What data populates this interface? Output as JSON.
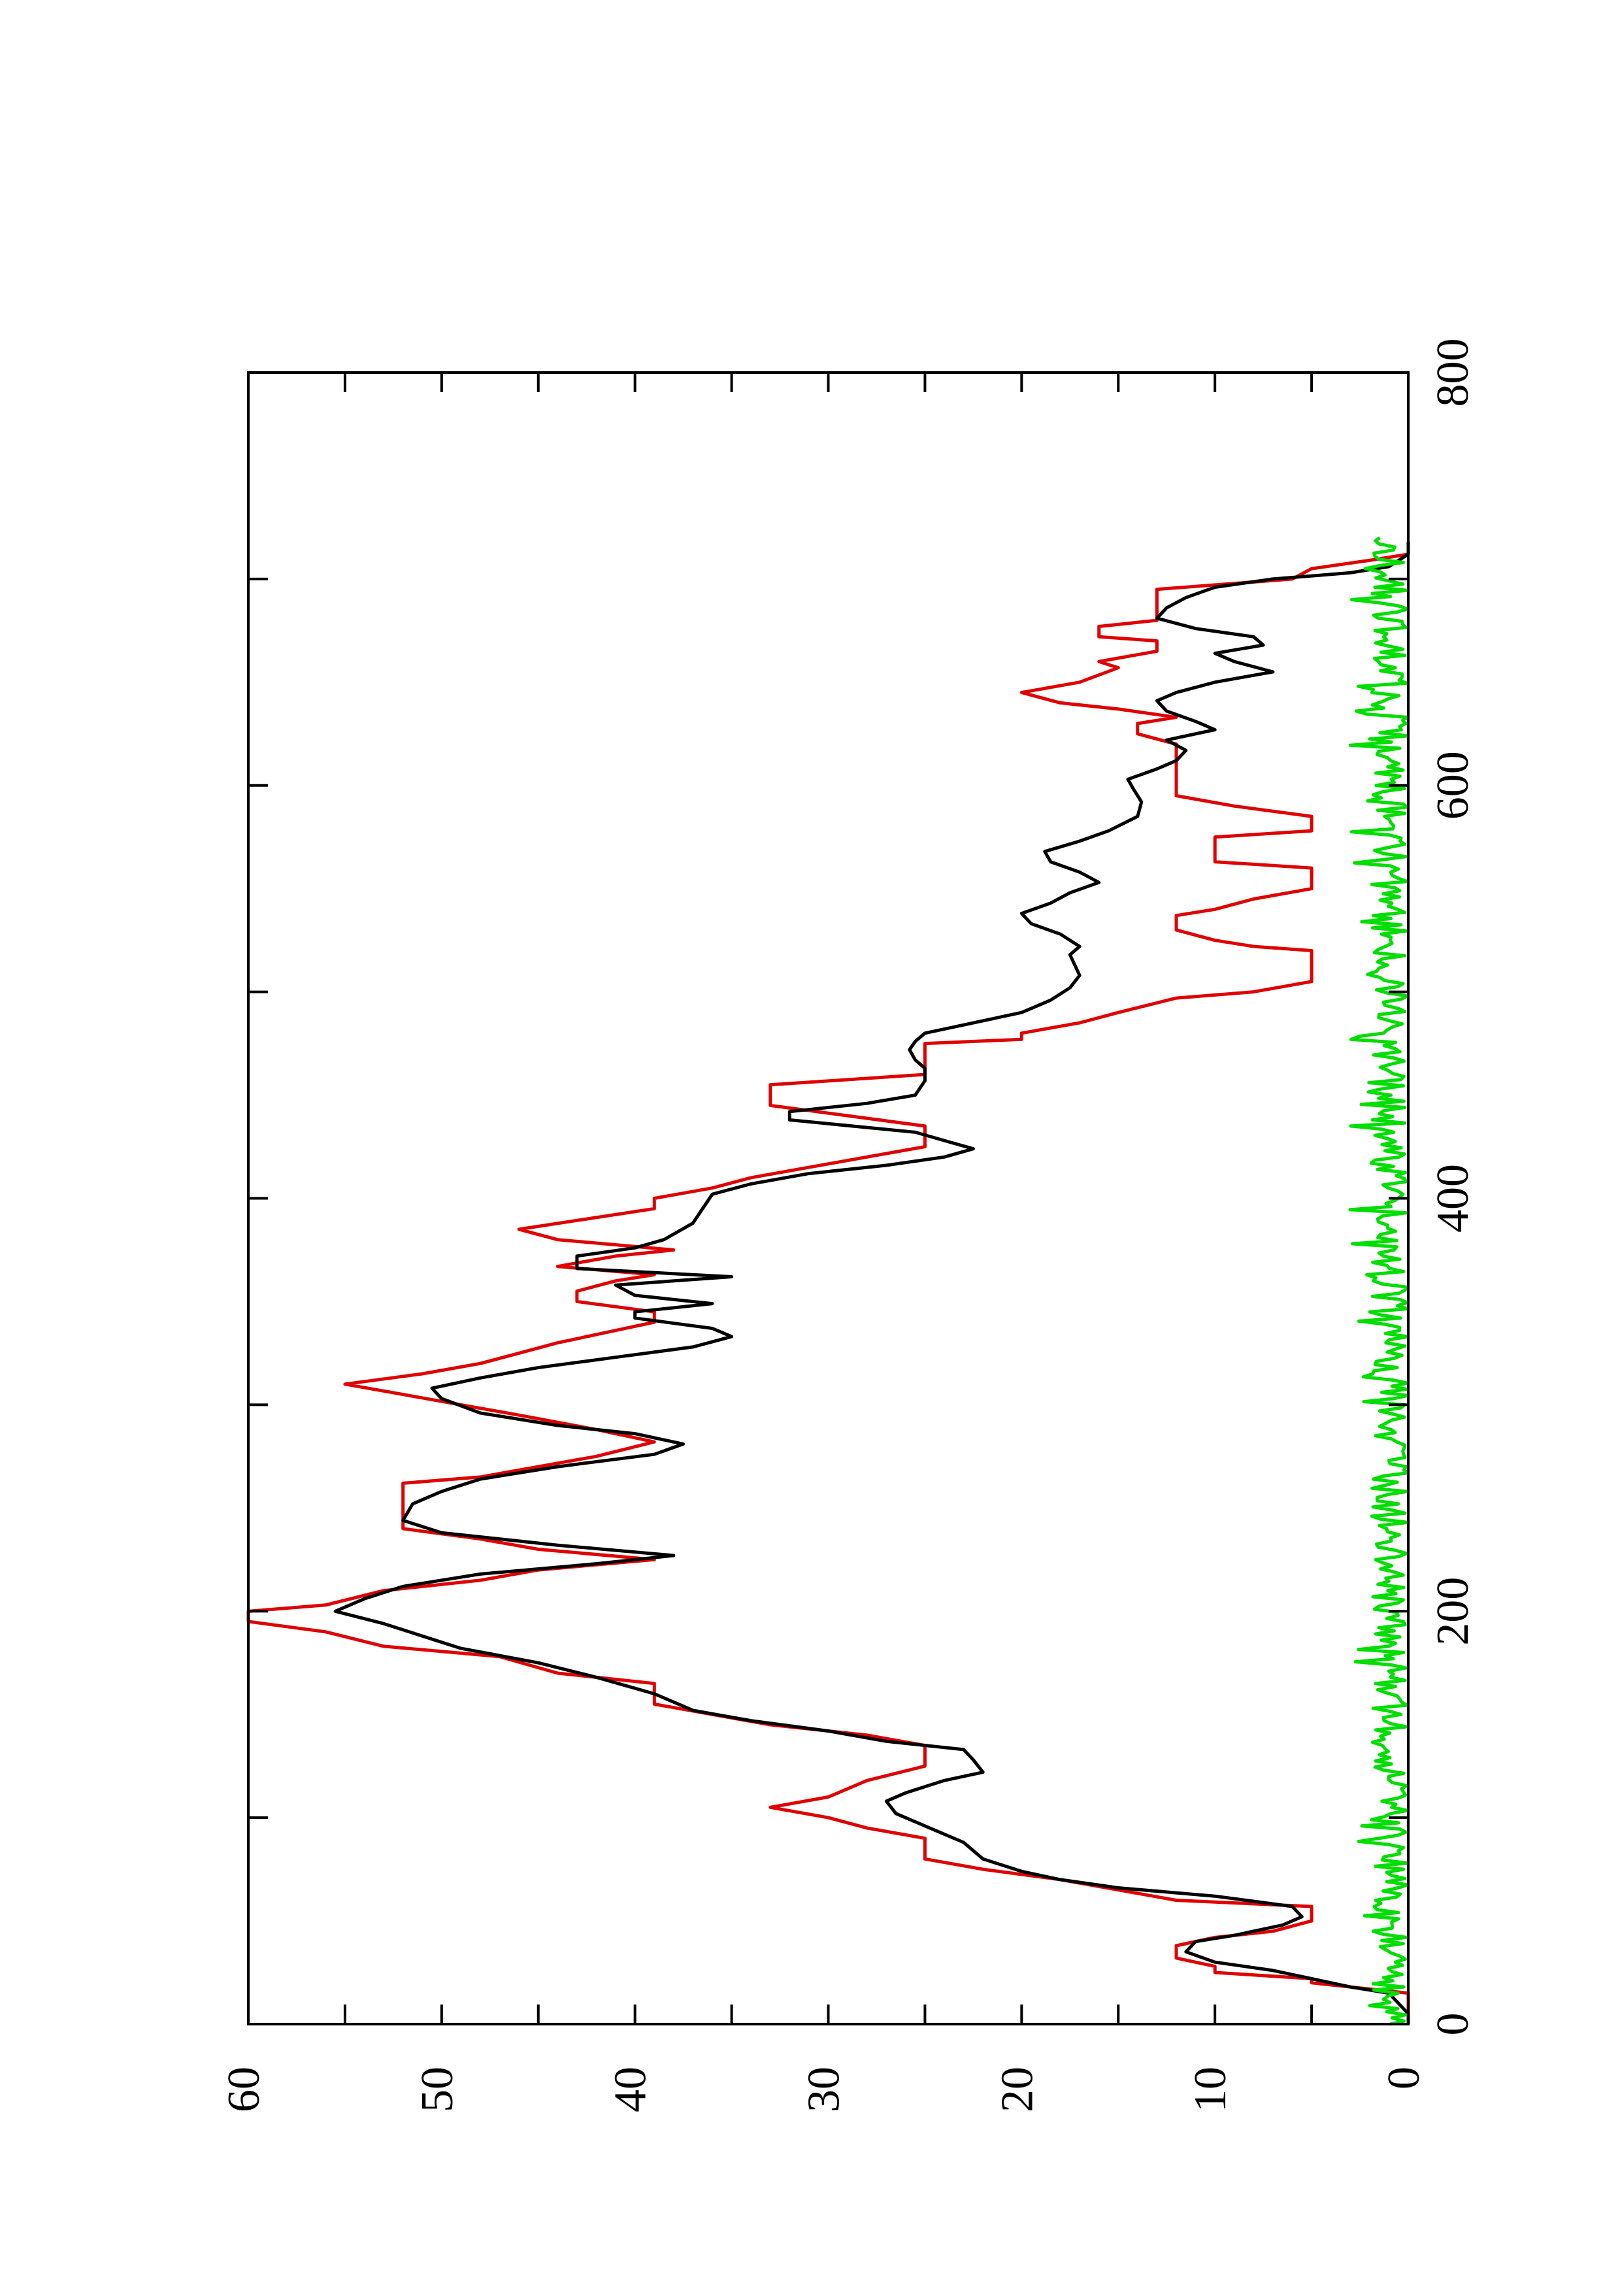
{
  "chart_data": {
    "type": "line",
    "orientation": "rotated-90-ccw",
    "title": "",
    "xlabel": "",
    "ylabel": "",
    "xlim": [
      0,
      800
    ],
    "ylim": [
      0,
      60
    ],
    "x_ticks": [
      0,
      200,
      400,
      600,
      800
    ],
    "y_ticks": [
      0,
      10,
      20,
      30,
      40,
      50,
      60
    ],
    "x_minor_step": 100,
    "y_minor_step": 5,
    "grid": false,
    "legend": "none",
    "series": [
      {
        "color": "#e00000",
        "style": "step",
        "points": [
          [
            0,
            0
          ],
          [
            15,
            0
          ],
          [
            20,
            5
          ],
          [
            22,
            5
          ],
          [
            25,
            10
          ],
          [
            28,
            10
          ],
          [
            32,
            12
          ],
          [
            38,
            12
          ],
          [
            42,
            10
          ],
          [
            45,
            7
          ],
          [
            50,
            5
          ],
          [
            57,
            5
          ],
          [
            60,
            12
          ],
          [
            65,
            15
          ],
          [
            70,
            18
          ],
          [
            75,
            22
          ],
          [
            80,
            25
          ],
          [
            90,
            25
          ],
          [
            95,
            28
          ],
          [
            100,
            30
          ],
          [
            105,
            33
          ],
          [
            110,
            30
          ],
          [
            118,
            28
          ],
          [
            125,
            25
          ],
          [
            135,
            25
          ],
          [
            140,
            28
          ],
          [
            145,
            33
          ],
          [
            150,
            36
          ],
          [
            155,
            39
          ],
          [
            165,
            39
          ],
          [
            170,
            44
          ],
          [
            178,
            47
          ],
          [
            183,
            53
          ],
          [
            190,
            56
          ],
          [
            195,
            60
          ],
          [
            200,
            60
          ],
          [
            203,
            56
          ],
          [
            210,
            53
          ],
          [
            215,
            48
          ],
          [
            220,
            45
          ],
          [
            225,
            39
          ],
          [
            230,
            45
          ],
          [
            235,
            48
          ],
          [
            240,
            52
          ],
          [
            262,
            52
          ],
          [
            265,
            48
          ],
          [
            270,
            45
          ],
          [
            275,
            42
          ],
          [
            282,
            39
          ],
          [
            288,
            42
          ],
          [
            295,
            46
          ],
          [
            300,
            49
          ],
          [
            305,
            52
          ],
          [
            310,
            55
          ],
          [
            315,
            51
          ],
          [
            320,
            48
          ],
          [
            325,
            46
          ],
          [
            330,
            44
          ],
          [
            340,
            39
          ],
          [
            345,
            39
          ],
          [
            350,
            43
          ],
          [
            355,
            43
          ],
          [
            360,
            41
          ],
          [
            363,
            39
          ],
          [
            367,
            44
          ],
          [
            372,
            41
          ],
          [
            375,
            38
          ],
          [
            380,
            44
          ],
          [
            385,
            46
          ],
          [
            395,
            39
          ],
          [
            400,
            39
          ],
          [
            405,
            36
          ],
          [
            410,
            34
          ],
          [
            415,
            31
          ],
          [
            425,
            25
          ],
          [
            435,
            25
          ],
          [
            440,
            29
          ],
          [
            445,
            33
          ],
          [
            455,
            33
          ],
          [
            460,
            25
          ],
          [
            465,
            25
          ],
          [
            470,
            25
          ],
          [
            475,
            25
          ],
          [
            477,
            20
          ],
          [
            480,
            20
          ],
          [
            485,
            17
          ],
          [
            490,
            15
          ],
          [
            497,
            12
          ],
          [
            500,
            8
          ],
          [
            505,
            5
          ],
          [
            520,
            5
          ],
          [
            522,
            8
          ],
          [
            525,
            10
          ],
          [
            530,
            12
          ],
          [
            537,
            12
          ],
          [
            540,
            10
          ],
          [
            545,
            8
          ],
          [
            550,
            5
          ],
          [
            560,
            5
          ],
          [
            563,
            10
          ],
          [
            575,
            10
          ],
          [
            578,
            5
          ],
          [
            585,
            5
          ],
          [
            590,
            9
          ],
          [
            595,
            12
          ],
          [
            620,
            12
          ],
          [
            625,
            14
          ],
          [
            630,
            14
          ],
          [
            633,
            12
          ],
          [
            637,
            15
          ],
          [
            640,
            18
          ],
          [
            645,
            20
          ],
          [
            650,
            17
          ],
          [
            657,
            15
          ],
          [
            660,
            16
          ],
          [
            665,
            13
          ],
          [
            670,
            13
          ],
          [
            672,
            16
          ],
          [
            677,
            16
          ],
          [
            680,
            13
          ],
          [
            695,
            13
          ],
          [
            700,
            6
          ],
          [
            705,
            5
          ],
          [
            709,
            2
          ],
          [
            712,
            0
          ]
        ]
      },
      {
        "color": "#000000",
        "style": "line",
        "points": [
          [
            0,
            0
          ],
          [
            5,
            0
          ],
          [
            10,
            0.5
          ],
          [
            15,
            1
          ],
          [
            18,
            3
          ],
          [
            22,
            5
          ],
          [
            26,
            7
          ],
          [
            30,
            10
          ],
          [
            35,
            11.5
          ],
          [
            40,
            11
          ],
          [
            43,
            9
          ],
          [
            48,
            6.5
          ],
          [
            52,
            5.5
          ],
          [
            57,
            6
          ],
          [
            62,
            10
          ],
          [
            66,
            15
          ],
          [
            70,
            18
          ],
          [
            74,
            20
          ],
          [
            80,
            22
          ],
          [
            88,
            23
          ],
          [
            96,
            25
          ],
          [
            102,
            26.5
          ],
          [
            108,
            27
          ],
          [
            112,
            26
          ],
          [
            118,
            24
          ],
          [
            122,
            22
          ],
          [
            128,
            22.5
          ],
          [
            133,
            23
          ],
          [
            137,
            27
          ],
          [
            142,
            30
          ],
          [
            147,
            34
          ],
          [
            152,
            37
          ],
          [
            160,
            39
          ],
          [
            168,
            42
          ],
          [
            175,
            45
          ],
          [
            182,
            49
          ],
          [
            188,
            51
          ],
          [
            194,
            53
          ],
          [
            200,
            55.5
          ],
          [
            206,
            54
          ],
          [
            212,
            52
          ],
          [
            218,
            48
          ],
          [
            223,
            42
          ],
          [
            227,
            38
          ],
          [
            232,
            44
          ],
          [
            238,
            50
          ],
          [
            244,
            52
          ],
          [
            252,
            51.5
          ],
          [
            258,
            50
          ],
          [
            264,
            48
          ],
          [
            270,
            44
          ],
          [
            276,
            39
          ],
          [
            281,
            37.5
          ],
          [
            286,
            40
          ],
          [
            290,
            44
          ],
          [
            296,
            48
          ],
          [
            303,
            50
          ],
          [
            308,
            50.5
          ],
          [
            313,
            48
          ],
          [
            318,
            45
          ],
          [
            323,
            41
          ],
          [
            328,
            37
          ],
          [
            333,
            35
          ],
          [
            337,
            36
          ],
          [
            342,
            40
          ],
          [
            345,
            40
          ],
          [
            349,
            36
          ],
          [
            353,
            40
          ],
          [
            358,
            41
          ],
          [
            362,
            35
          ],
          [
            366,
            43
          ],
          [
            372,
            43
          ],
          [
            376,
            40
          ],
          [
            380,
            38.5
          ],
          [
            388,
            37
          ],
          [
            395,
            36.5
          ],
          [
            402,
            36
          ],
          [
            407,
            34
          ],
          [
            412,
            31
          ],
          [
            416,
            27
          ],
          [
            420,
            24
          ],
          [
            424,
            22.5
          ],
          [
            428,
            24
          ],
          [
            432,
            25.5
          ],
          [
            438,
            32
          ],
          [
            442,
            32
          ],
          [
            446,
            28
          ],
          [
            450,
            25.5
          ],
          [
            457,
            25
          ],
          [
            463,
            25
          ],
          [
            467,
            25.5
          ],
          [
            472,
            25.8
          ],
          [
            476,
            25.5
          ],
          [
            480,
            25
          ],
          [
            484,
            23
          ],
          [
            490,
            20
          ],
          [
            496,
            18.5
          ],
          [
            502,
            17.5
          ],
          [
            508,
            17
          ],
          [
            512,
            17.2
          ],
          [
            518,
            17.5
          ],
          [
            522,
            17
          ],
          [
            528,
            18
          ],
          [
            533,
            19.5
          ],
          [
            538,
            20
          ],
          [
            543,
            18.5
          ],
          [
            548,
            17.5
          ],
          [
            553,
            16
          ],
          [
            558,
            17
          ],
          [
            563,
            18.5
          ],
          [
            568,
            18.8
          ],
          [
            573,
            17
          ],
          [
            578,
            15.5
          ],
          [
            585,
            14
          ],
          [
            592,
            13.8
          ],
          [
            598,
            14.2
          ],
          [
            603,
            14.5
          ],
          [
            608,
            13
          ],
          [
            612,
            12
          ],
          [
            617,
            11.5
          ],
          [
            622,
            12.5
          ],
          [
            627,
            10
          ],
          [
            631,
            11
          ],
          [
            636,
            12.5
          ],
          [
            641,
            13
          ],
          [
            645,
            12
          ],
          [
            650,
            10
          ],
          [
            655,
            7
          ],
          [
            660,
            9
          ],
          [
            664,
            10
          ],
          [
            668,
            7.5
          ],
          [
            672,
            8
          ],
          [
            676,
            11
          ],
          [
            681,
            13
          ],
          [
            686,
            12.5
          ],
          [
            691,
            11.5
          ],
          [
            696,
            10
          ],
          [
            700,
            7
          ],
          [
            703,
            3
          ],
          [
            706,
            1
          ],
          [
            712,
            0
          ],
          [
            718,
            0
          ]
        ]
      },
      {
        "color": "#00dd00",
        "style": "line",
        "noise_amplitude": 1.9,
        "x_range": [
          0,
          720
        ],
        "x_step": 1.5
      }
    ]
  }
}
